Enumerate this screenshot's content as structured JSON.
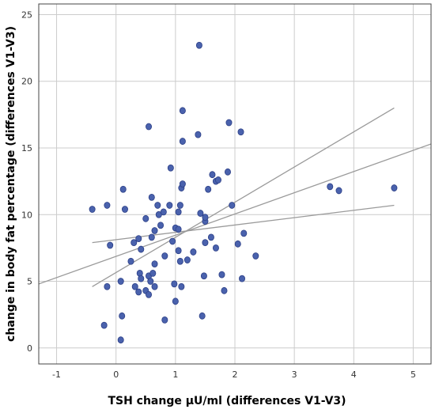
{
  "chart_data": {
    "type": "scatter",
    "title": "",
    "xlabel": "TSH change µU/ml (differences V1-V3)",
    "ylabel": "change in body fat percentage (differences V1-V3)",
    "xlim": [
      -1.3,
      5.3
    ],
    "ylim": [
      -1.2,
      25.8
    ],
    "xticks": [
      -1,
      0,
      1,
      2,
      3,
      4,
      5
    ],
    "yticks": [
      0,
      5,
      10,
      15,
      20,
      25
    ],
    "grid": true,
    "colors": {
      "points": "#4a62ad",
      "point_edge": "#2c3f86",
      "lines": "#9a9a9a",
      "grid": "#cccccc",
      "frame": "#444444"
    },
    "points": [
      {
        "x": -0.4,
        "y": 10.4
      },
      {
        "x": -0.15,
        "y": 10.7
      },
      {
        "x": -0.2,
        "y": 1.7
      },
      {
        "x": -0.15,
        "y": 4.6
      },
      {
        "x": -0.1,
        "y": 7.7
      },
      {
        "x": 0.08,
        "y": 0.6
      },
      {
        "x": 0.1,
        "y": 2.4
      },
      {
        "x": 0.08,
        "y": 5.0
      },
      {
        "x": 0.12,
        "y": 11.9
      },
      {
        "x": 0.15,
        "y": 10.4
      },
      {
        "x": 0.25,
        "y": 6.5
      },
      {
        "x": 0.3,
        "y": 7.9
      },
      {
        "x": 0.32,
        "y": 4.6
      },
      {
        "x": 0.38,
        "y": 4.2
      },
      {
        "x": 0.4,
        "y": 5.6
      },
      {
        "x": 0.42,
        "y": 5.2
      },
      {
        "x": 0.38,
        "y": 8.2
      },
      {
        "x": 0.42,
        "y": 7.4
      },
      {
        "x": 0.5,
        "y": 4.3
      },
      {
        "x": 0.55,
        "y": 5.4
      },
      {
        "x": 0.5,
        "y": 9.7
      },
      {
        "x": 0.55,
        "y": 4.0
      },
      {
        "x": 0.58,
        "y": 5.0
      },
      {
        "x": 0.6,
        "y": 8.3
      },
      {
        "x": 0.6,
        "y": 11.3
      },
      {
        "x": 0.55,
        "y": 16.6
      },
      {
        "x": 0.62,
        "y": 5.6
      },
      {
        "x": 0.65,
        "y": 6.3
      },
      {
        "x": 0.65,
        "y": 8.8
      },
      {
        "x": 0.65,
        "y": 4.6
      },
      {
        "x": 0.7,
        "y": 10.7
      },
      {
        "x": 0.72,
        "y": 10.0
      },
      {
        "x": 0.75,
        "y": 9.2
      },
      {
        "x": 0.8,
        "y": 10.2
      },
      {
        "x": 0.82,
        "y": 2.1
      },
      {
        "x": 0.82,
        "y": 6.9
      },
      {
        "x": 0.9,
        "y": 10.7
      },
      {
        "x": 0.92,
        "y": 13.5
      },
      {
        "x": 0.95,
        "y": 8.0
      },
      {
        "x": 0.98,
        "y": 4.8
      },
      {
        "x": 1.0,
        "y": 3.5
      },
      {
        "x": 1.0,
        "y": 9.0
      },
      {
        "x": 1.05,
        "y": 7.3
      },
      {
        "x": 1.05,
        "y": 8.9
      },
      {
        "x": 1.05,
        "y": 10.2
      },
      {
        "x": 1.08,
        "y": 6.5
      },
      {
        "x": 1.08,
        "y": 10.7
      },
      {
        "x": 1.1,
        "y": 12.0
      },
      {
        "x": 1.12,
        "y": 12.3
      },
      {
        "x": 1.12,
        "y": 15.5
      },
      {
        "x": 1.12,
        "y": 17.8
      },
      {
        "x": 1.1,
        "y": 4.6
      },
      {
        "x": 1.2,
        "y": 6.6
      },
      {
        "x": 1.3,
        "y": 7.2
      },
      {
        "x": 1.38,
        "y": 16.0
      },
      {
        "x": 1.4,
        "y": 22.7
      },
      {
        "x": 1.42,
        "y": 10.1
      },
      {
        "x": 1.45,
        "y": 2.4
      },
      {
        "x": 1.48,
        "y": 5.4
      },
      {
        "x": 1.5,
        "y": 7.9
      },
      {
        "x": 1.5,
        "y": 9.5
      },
      {
        "x": 1.5,
        "y": 9.8
      },
      {
        "x": 1.55,
        "y": 11.9
      },
      {
        "x": 1.6,
        "y": 8.3
      },
      {
        "x": 1.62,
        "y": 13.0
      },
      {
        "x": 1.68,
        "y": 12.5
      },
      {
        "x": 1.68,
        "y": 7.5
      },
      {
        "x": 1.72,
        "y": 12.6
      },
      {
        "x": 1.78,
        "y": 5.5
      },
      {
        "x": 1.82,
        "y": 4.3
      },
      {
        "x": 1.88,
        "y": 13.2
      },
      {
        "x": 1.9,
        "y": 16.9
      },
      {
        "x": 1.95,
        "y": 10.7
      },
      {
        "x": 2.05,
        "y": 7.8
      },
      {
        "x": 2.1,
        "y": 16.2
      },
      {
        "x": 2.12,
        "y": 5.2
      },
      {
        "x": 2.15,
        "y": 8.6
      },
      {
        "x": 2.35,
        "y": 6.9
      },
      {
        "x": 3.6,
        "y": 12.1
      },
      {
        "x": 3.75,
        "y": 11.8
      },
      {
        "x": 4.68,
        "y": 12.0
      }
    ],
    "lines": [
      {
        "role": "fit",
        "x": [
          -1.3,
          5.3
        ],
        "y": [
          4.8,
          15.3
        ]
      },
      {
        "role": "upper-bound",
        "x": [
          -0.4,
          4.68
        ],
        "y": [
          4.6,
          18.0
        ]
      },
      {
        "role": "lower-bound",
        "x": [
          -0.4,
          4.68
        ],
        "y": [
          7.9,
          10.7
        ]
      }
    ]
  }
}
